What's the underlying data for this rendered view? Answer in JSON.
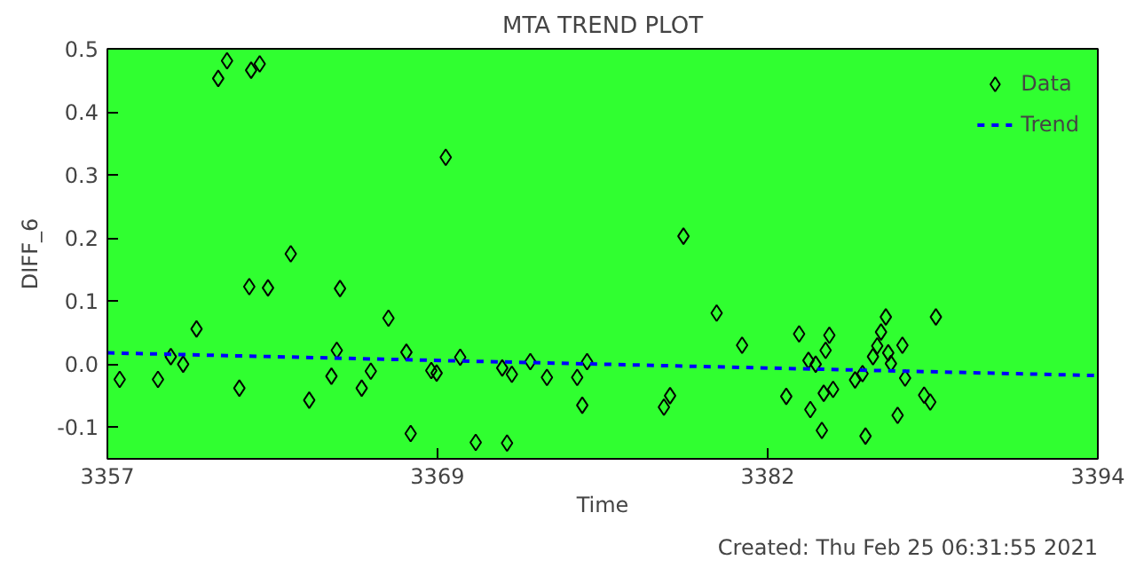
{
  "chart_data": {
    "type": "scatter",
    "title": "MTA TREND PLOT",
    "xlabel": "Time",
    "ylabel": "DIFF_6",
    "annotations": [
      "Created: Thu Feb 25 06:31:55 2021"
    ],
    "xlim": [
      3357,
      3394
    ],
    "ylim": [
      -0.15,
      0.5
    ],
    "xticks": [
      3357,
      {
        "value": 3369.33,
        "label": "3369"
      },
      {
        "value": 3381.67,
        "label": "3382"
      },
      3394
    ],
    "yticks": [
      -0.1,
      {
        "value": 0,
        "label": "0.0"
      },
      0.1,
      0.2,
      0.3,
      0.4,
      0.5
    ],
    "grid": false,
    "legend": "top right",
    "series": [
      {
        "name": "Data",
        "color": "#000000",
        "marker": "diamond",
        "x": [
          3357.46,
          3358.89,
          3359.37,
          3359.83,
          3360.33,
          3361.14,
          3361.47,
          3361.93,
          3362.3,
          3362.37,
          3362.69,
          3363.0,
          3363.85,
          3364.54,
          3365.37,
          3365.57,
          3365.69,
          3366.5,
          3366.84,
          3367.5,
          3368.17,
          3368.33,
          3369.1,
          3369.3,
          3369.64,
          3370.18,
          3370.76,
          3371.75,
          3371.93,
          3372.11,
          3372.8,
          3373.42,
          3374.55,
          3374.74,
          3374.92,
          3377.79,
          3378.02,
          3378.52,
          3379.76,
          3380.71,
          3382.36,
          3382.84,
          3383.19,
          3383.26,
          3383.46,
          3383.69,
          3383.76,
          3383.83,
          3383.97,
          3384.11,
          3384.93,
          3385.21,
          3385.32,
          3385.6,
          3385.76,
          3385.9,
          3386.08,
          3386.17,
          3386.27,
          3386.52,
          3386.7,
          3386.8,
          3387.51,
          3387.74,
          3387.95
        ],
        "values": [
          -0.024,
          -0.024,
          0.012,
          0.0,
          0.056,
          0.453,
          0.481,
          -0.038,
          0.123,
          0.466,
          0.476,
          0.121,
          0.175,
          -0.057,
          -0.019,
          0.022,
          0.12,
          -0.038,
          -0.011,
          0.073,
          0.019,
          -0.11,
          -0.01,
          -0.014,
          0.328,
          0.011,
          -0.124,
          -0.006,
          -0.125,
          -0.016,
          0.004,
          -0.021,
          -0.021,
          -0.065,
          0.004,
          -0.068,
          -0.05,
          0.203,
          0.081,
          0.03,
          -0.051,
          0.048,
          0.006,
          -0.072,
          0.0,
          -0.105,
          -0.046,
          0.022,
          0.046,
          -0.04,
          -0.025,
          -0.015,
          -0.114,
          0.012,
          0.029,
          0.051,
          0.075,
          0.018,
          0.001,
          -0.081,
          0.03,
          -0.022,
          -0.049,
          -0.06,
          0.075
        ]
      },
      {
        "name": "Trend",
        "type": "line",
        "color": "#0000ff",
        "line_style": "dashed",
        "marker": "none",
        "x": [
          3357,
          3394
        ],
        "values": [
          0.018,
          -0.018
        ]
      }
    ]
  }
}
